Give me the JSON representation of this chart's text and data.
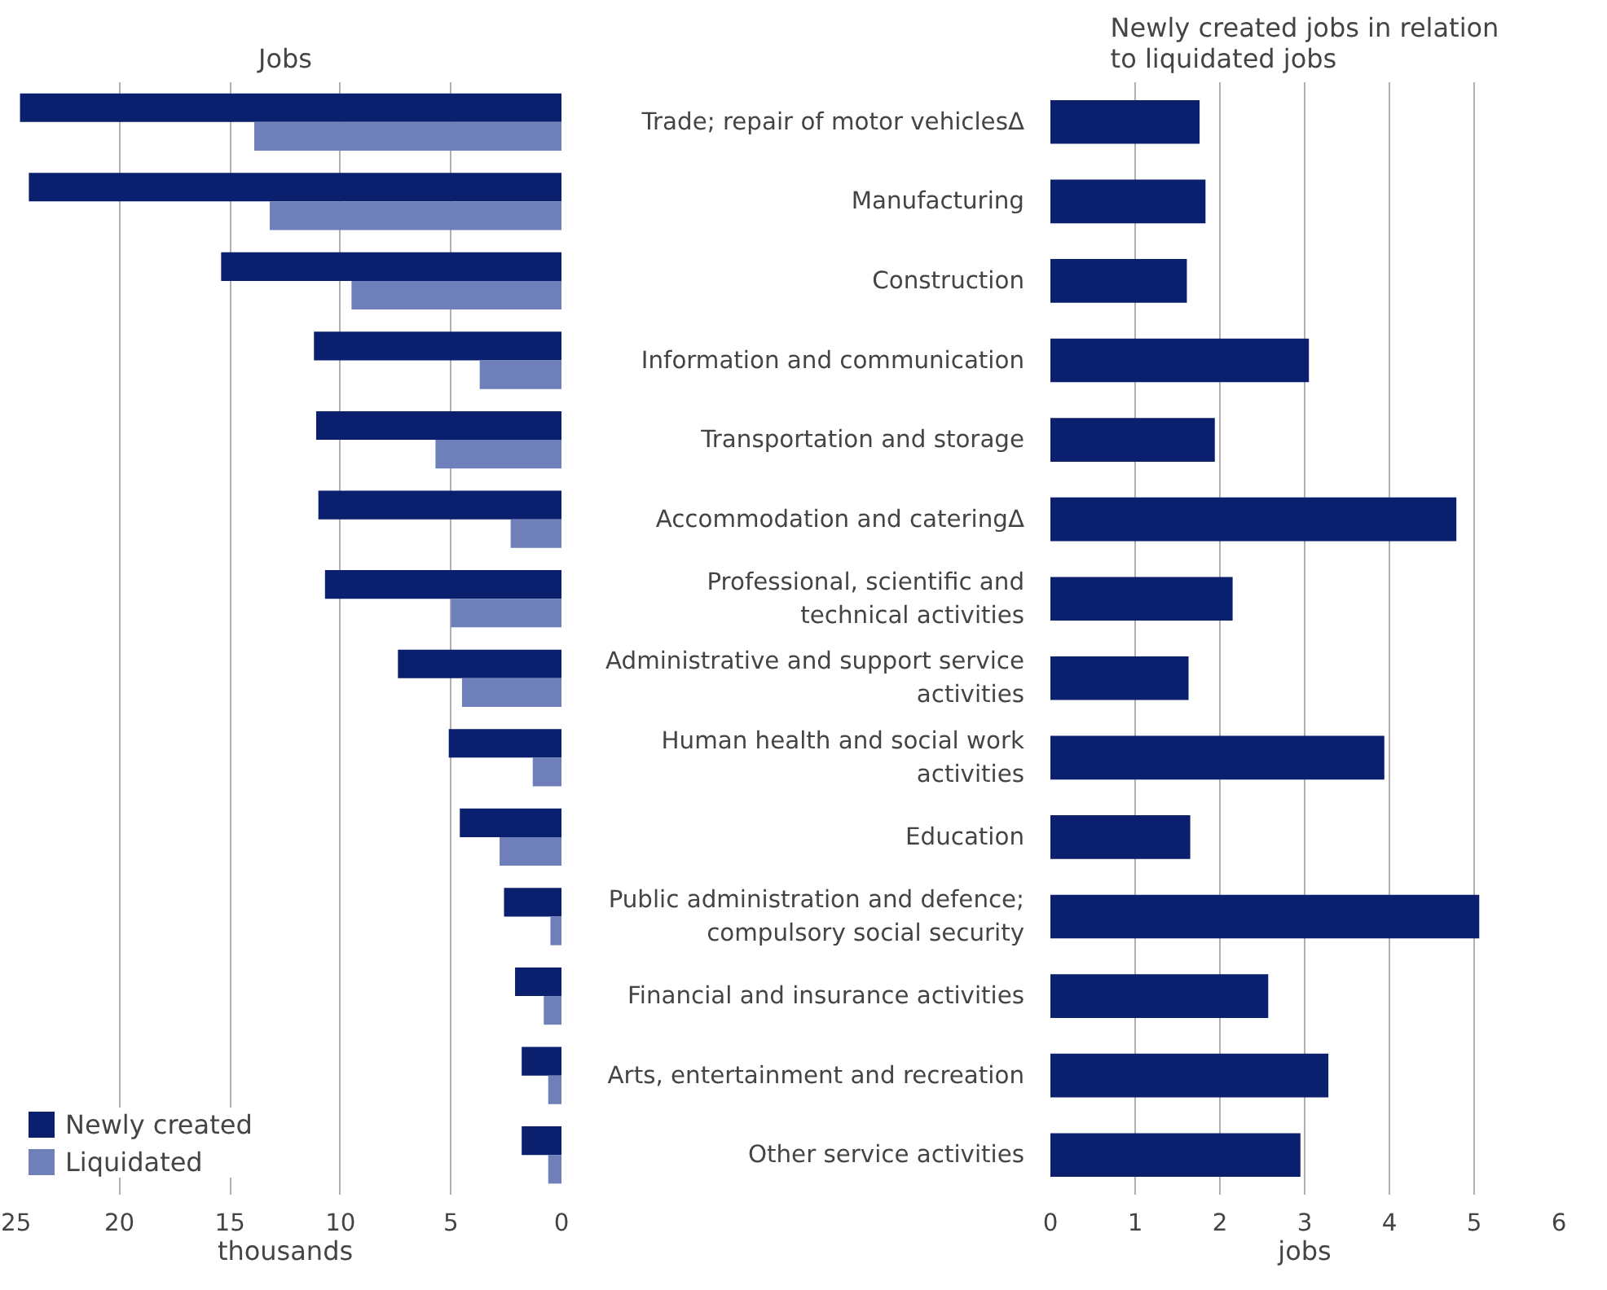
{
  "chart_data": [
    {
      "type": "bar",
      "orientation": "horizontal",
      "title": "Jobs",
      "xlabel": "thousands",
      "categories": [
        "Trade; repair of motor vehiclesΔ",
        "Manufacturing",
        "Construction",
        "Information and communication",
        "Transportation and storage",
        "Accommodation and cateringΔ",
        "Professional, scientific and technical activities",
        "Administrative and support service activities",
        "Human health and social work activities",
        "Education",
        "Public administration and defence; compulsory social security",
        "Financial and insurance activities",
        "Arts, entertainment and recreation",
        "Other service activities"
      ],
      "series": [
        {
          "name": "Newly created",
          "color": "#0a1f6e",
          "values": [
            24.5,
            24.1,
            15.4,
            11.2,
            11.1,
            11.0,
            10.7,
            7.4,
            5.1,
            4.6,
            2.6,
            2.1,
            1.8,
            1.8
          ]
        },
        {
          "name": "Liquidated",
          "color": "#6e7fb9",
          "values": [
            13.9,
            13.2,
            9.5,
            3.7,
            5.7,
            2.3,
            5.0,
            4.5,
            1.3,
            2.8,
            0.5,
            0.8,
            0.6,
            0.6
          ]
        }
      ],
      "xlim": [
        25,
        0
      ],
      "xticks": [
        25,
        20,
        15,
        10,
        5,
        0
      ],
      "grid": "x",
      "legend": "bottom left",
      "tick_labels": "x"
    },
    {
      "type": "bar",
      "orientation": "horizontal",
      "title": "Newly created jobs in relation to liquidated jobs",
      "xlabel": "jobs",
      "categories": [
        "Trade; repair of motor vehiclesΔ",
        "Manufacturing",
        "Construction",
        "Information and communication",
        "Transportation and storage",
        "Accommodation and cateringΔ",
        "Professional, scientific and technical activities",
        "Administrative and support service activities",
        "Human health and social work activities",
        "Education",
        "Public administration and defence; compulsory social security",
        "Financial and insurance activities",
        "Arts, entertainment and recreation",
        "Other service activities"
      ],
      "series": [
        {
          "color": "#0a1f6e",
          "values": [
            1.76,
            1.83,
            1.61,
            3.05,
            1.94,
            4.79,
            2.15,
            1.63,
            3.94,
            1.65,
            5.06,
            2.57,
            3.28,
            2.95
          ]
        }
      ],
      "xlim": [
        0,
        6
      ],
      "xticks": [
        0,
        1,
        2,
        3,
        4,
        5,
        6
      ],
      "grid": "x"
    }
  ]
}
